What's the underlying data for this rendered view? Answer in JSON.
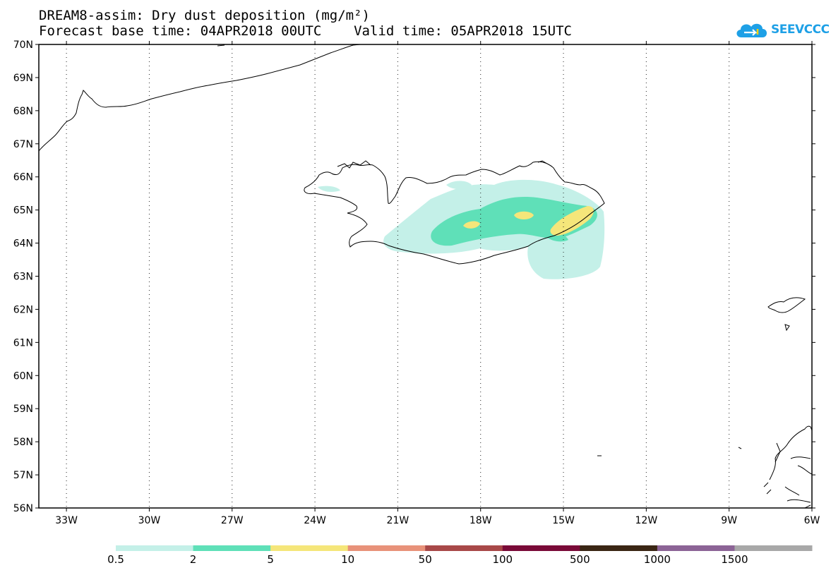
{
  "header": {
    "title_line1": "DREAM8-assim: Dry dust deposition (mg/m²)",
    "title_line2": "Forecast base time: 04APR2018 00UTC    Valid time: 05APR2018 15UTC"
  },
  "logo": {
    "text": "SEEVCCC",
    "icon": "cloud-icon",
    "color": "#1ea0e6"
  },
  "map": {
    "lon_range": [
      -34,
      -6
    ],
    "lat_range": [
      56,
      70
    ],
    "grid": "dotted",
    "lat_labels": [
      "56N",
      "57N",
      "58N",
      "59N",
      "60N",
      "61N",
      "62N",
      "63N",
      "64N",
      "65N",
      "66N",
      "67N",
      "68N",
      "69N",
      "70N"
    ],
    "lon_labels": [
      "33W",
      "30W",
      "27W",
      "24W",
      "21W",
      "18W",
      "15W",
      "12W",
      "9W",
      "6W"
    ],
    "lat_values": [
      56,
      57,
      58,
      59,
      60,
      61,
      62,
      63,
      64,
      65,
      66,
      67,
      68,
      69,
      70
    ],
    "lon_values": [
      -33,
      -30,
      -27,
      -24,
      -21,
      -18,
      -15,
      -12,
      -9,
      -6
    ]
  },
  "colorbar": {
    "colors": [
      "#c4f0e8",
      "#5fe0b8",
      "#f5e67a",
      "#e8927a",
      "#a84848",
      "#7a0a38",
      "#3a2614",
      "#8c6496",
      "#a8a8a8"
    ],
    "labels": [
      "0.5",
      "2",
      "5",
      "10",
      "50",
      "100",
      "500",
      "1000",
      "1500"
    ]
  },
  "dust_levels": {
    "light": "#c4f0e8",
    "medium": "#5fe0b8",
    "high": "#f5e67a"
  }
}
